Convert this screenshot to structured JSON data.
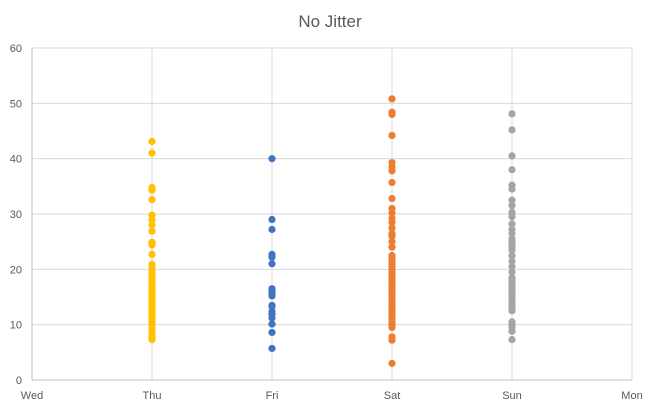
{
  "chart_data": {
    "type": "scatter",
    "title": "No Jitter",
    "xlabel": "",
    "ylabel": "",
    "x_tick_labels": [
      "Wed",
      "Thu",
      "Fri",
      "Sat",
      "Sun",
      "Mon"
    ],
    "xlim": [
      0,
      5
    ],
    "ylim": [
      0,
      60
    ],
    "y_ticks": [
      0,
      10,
      20,
      30,
      40,
      50,
      60
    ],
    "grid": true,
    "legend": "none",
    "series": [
      {
        "category": "Thu",
        "color": "#FFC000",
        "x": 1,
        "values": [
          7.3,
          7.8,
          8.5,
          9.2,
          9.8,
          10.3,
          10.6,
          11.0,
          11.4,
          11.8,
          12.2,
          12.6,
          13.0,
          13.4,
          13.8,
          14.2,
          14.6,
          15.0,
          15.5,
          15.9,
          16.3,
          16.8,
          17.3,
          17.7,
          18.2,
          18.6,
          19.2,
          19.8,
          20.4,
          20.9,
          22.7,
          24.4,
          24.9,
          26.9,
          28.0,
          29.0,
          29.8,
          32.6,
          34.3,
          34.8,
          41.0,
          43.1
        ]
      },
      {
        "category": "Fri",
        "color": "#4472C4",
        "x": 2,
        "values": [
          5.7,
          8.6,
          10.1,
          11.2,
          11.9,
          12.4,
          13.3,
          13.5,
          15.2,
          15.7,
          16.0,
          16.5,
          21.0,
          22.2,
          22.7,
          27.2,
          29.0,
          40.0
        ]
      },
      {
        "category": "Sat",
        "color": "#ED7D31",
        "x": 3,
        "values": [
          3.0,
          7.2,
          7.8,
          9.5,
          10.0,
          10.5,
          11.0,
          11.5,
          12.0,
          12.5,
          13.0,
          13.5,
          14.0,
          14.5,
          15.0,
          15.5,
          16.0,
          16.5,
          17.0,
          17.5,
          18.0,
          18.5,
          19.0,
          19.5,
          20.0,
          20.5,
          21.0,
          21.5,
          22.0,
          22.5,
          24.0,
          25.0,
          26.0,
          26.5,
          27.5,
          28.5,
          29.2,
          30.2,
          31.0,
          32.8,
          35.7,
          37.8,
          38.5,
          39.3,
          44.2,
          48.0,
          48.4,
          50.8
        ]
      },
      {
        "category": "Sun",
        "color": "#A5A5A5",
        "x": 4,
        "values": [
          7.3,
          8.8,
          9.5,
          10.0,
          10.5,
          12.5,
          13.0,
          13.5,
          14.0,
          14.5,
          15.0,
          15.5,
          16.0,
          16.5,
          17.0,
          17.5,
          18.0,
          18.5,
          19.5,
          20.5,
          21.5,
          22.5,
          23.5,
          24.0,
          24.5,
          25.0,
          25.5,
          26.5,
          27.2,
          28.2,
          29.5,
          30.3,
          31.5,
          32.5,
          34.5,
          35.2,
          38.0,
          40.5,
          45.2,
          48.1
        ]
      }
    ]
  },
  "style": {
    "grid_color": "#D9D9D9",
    "axis_color": "#BFBFBF"
  }
}
